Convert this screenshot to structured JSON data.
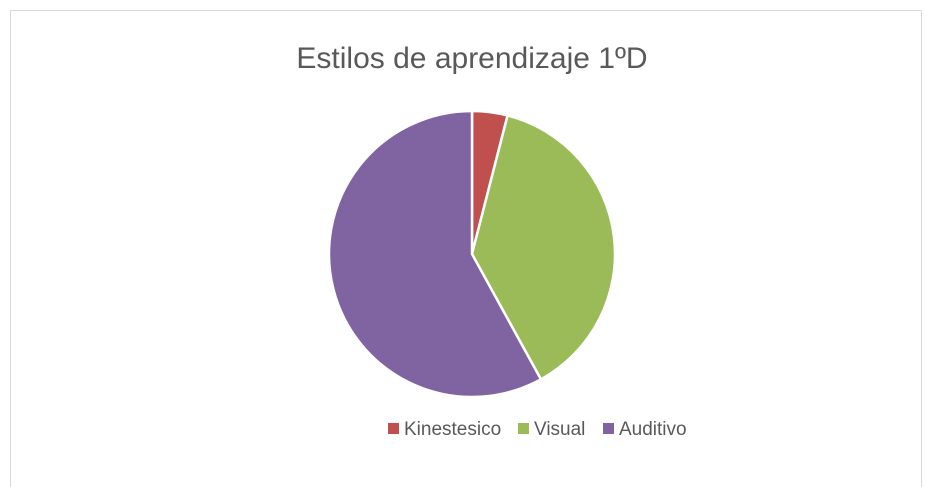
{
  "chart_data": {
    "type": "pie",
    "title": "Estilos de aprendizaje 1ºD",
    "categories": [
      "Kinestesico",
      "Visual",
      "Auditivo"
    ],
    "values": [
      4,
      38,
      58
    ],
    "colors": [
      "#c0504d",
      "#9bbb59",
      "#8064a2"
    ],
    "legend": "bottom"
  }
}
